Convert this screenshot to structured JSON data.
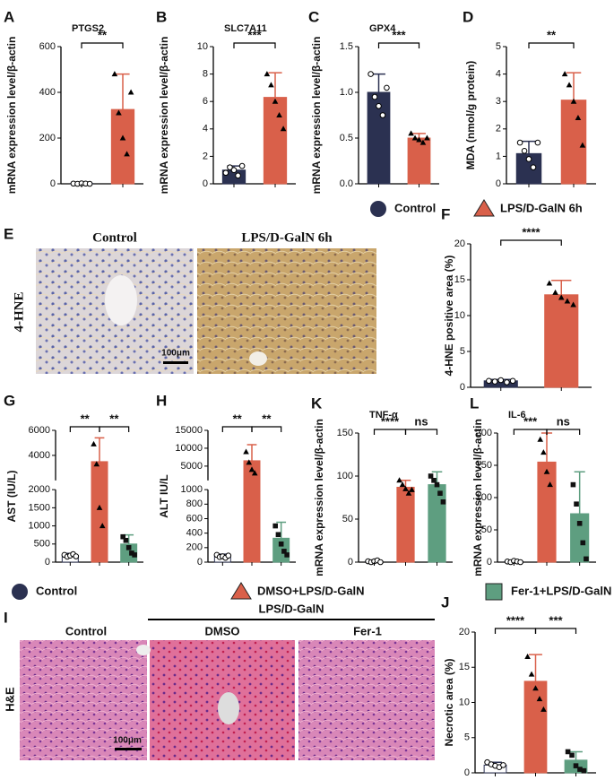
{
  "chart_data": [
    {
      "type": "bar",
      "panel": "A",
      "title": "PTGS2",
      "ylabel": "mRNA expression level/β-actin",
      "categories": [
        null,
        null
      ],
      "values": [
        1,
        325
      ],
      "errors": [
        1,
        155
      ],
      "points": [
        [
          1,
          0,
          2,
          1,
          0
        ],
        [
          480,
          310,
          200,
          130,
          400
        ]
      ],
      "colors": [
        "#ffffff",
        "#d9604a"
      ],
      "ylim": [
        0,
        600
      ],
      "yticks": [
        0,
        200,
        400,
        600
      ],
      "significance": [
        "**"
      ]
    },
    {
      "type": "bar",
      "panel": "B",
      "title": "SLC7A11",
      "ylabel": "mRNA expression level/β-actin",
      "categories": [
        null,
        null
      ],
      "values": [
        1.0,
        6.3
      ],
      "errors": [
        0.3,
        1.8
      ],
      "points": [
        [
          0.8,
          1.2,
          1.0,
          0.6,
          1.3
        ],
        [
          8.0,
          7.2,
          6.0,
          5.0,
          4.0
        ]
      ],
      "colors": [
        "#2b3151",
        "#d9604a"
      ],
      "ylim": [
        0,
        10
      ],
      "yticks": [
        0,
        2,
        4,
        6,
        8,
        10
      ],
      "significance": [
        "***"
      ]
    },
    {
      "type": "bar",
      "panel": "C",
      "title": "GPX4",
      "ylabel": "mRNA expression level/β-actin",
      "categories": [
        null,
        null
      ],
      "values": [
        1.0,
        0.5
      ],
      "errors": [
        0.2,
        0.05
      ],
      "points": [
        [
          1.2,
          0.95,
          0.85,
          0.75,
          1.05
        ],
        [
          0.55,
          0.5,
          0.48,
          0.45,
          0.5
        ]
      ],
      "colors": [
        "#2b3151",
        "#d9604a"
      ],
      "ylim": [
        0,
        1.5
      ],
      "yticks": [
        {
          "value": 0,
          "label": "0.0"
        },
        0.5,
        {
          "value": 1,
          "label": "1.0"
        },
        1.5
      ],
      "significance": [
        "***"
      ]
    },
    {
      "type": "bar",
      "panel": "D",
      "ylabel": "MDA (nmol/g protein)",
      "categories": [
        null,
        null
      ],
      "values": [
        1.1,
        3.05
      ],
      "errors": [
        0.45,
        1.0
      ],
      "points": [
        [
          1.5,
          1.2,
          0.9,
          0.6,
          1.5
        ],
        [
          4.0,
          3.6,
          3.0,
          2.4,
          1.4
        ]
      ],
      "colors": [
        "#2b3151",
        "#d9604a"
      ],
      "ylim": [
        0,
        5
      ],
      "yticks": [
        0,
        1,
        2,
        3,
        4,
        5
      ],
      "significance": [
        "**"
      ]
    },
    {
      "type": "bar",
      "panel": "F",
      "ylabel": "4-HNE positive area (%)",
      "categories": [
        null,
        null
      ],
      "values": [
        0.9,
        12.9
      ],
      "errors": [
        0.2,
        2.0
      ],
      "points": [
        [
          0.9,
          0.8,
          1.0,
          0.7,
          0.9
        ],
        [
          14.5,
          13.2,
          12.5,
          12.0,
          11.5
        ]
      ],
      "colors": [
        "#2b3151",
        "#d9604a"
      ],
      "ylim": [
        0,
        20
      ],
      "yticks": [
        0,
        5,
        10,
        15,
        20
      ],
      "significance": [
        "****"
      ]
    },
    {
      "type": "bar",
      "panel": "G",
      "ylabel": "AST (IU/L)",
      "categories": [
        null,
        null,
        null
      ],
      "values": [
        180,
        3500,
        500
      ],
      "errors": [
        60,
        1900,
        250
      ],
      "points": [
        [
          200,
          150,
          180,
          220,
          160
        ],
        [
          4900,
          3300,
          1500,
          1000
        ],
        [
          700,
          600,
          400,
          250,
          200
        ]
      ],
      "colors": [
        "#ffffff",
        "#d9604a",
        "#5e9e80"
      ],
      "ylim": [
        0,
        6000
      ],
      "ybreak": 2000,
      "yticks": [
        0,
        500,
        1000,
        1500,
        2000,
        4000,
        6000
      ],
      "significance": [
        "**",
        "**"
      ]
    },
    {
      "type": "bar",
      "panel": "H",
      "ylabel": "ALT IU/L",
      "categories": [
        null,
        null,
        null
      ],
      "values": [
        80,
        6500,
        330
      ],
      "errors": [
        30,
        4500,
        220
      ],
      "points": [
        [
          100,
          70,
          80,
          60,
          90
        ],
        [
          9000,
          6000,
          4000,
          3000
        ],
        [
          500,
          380,
          250,
          150,
          100
        ]
      ],
      "colors": [
        "#ffffff",
        "#d9604a",
        "#5e9e80"
      ],
      "ylim": [
        0,
        15000
      ],
      "ybreak": 1000,
      "yticks": [
        0,
        200,
        400,
        600,
        800,
        1000,
        5000,
        10000,
        15000
      ],
      "significance": [
        "**",
        "**"
      ]
    },
    {
      "type": "bar",
      "panel": "K",
      "title": "TNF-α",
      "ylabel": "mRNA expression level/β-actin",
      "categories": [
        null,
        null,
        null
      ],
      "values": [
        1,
        87,
        90
      ],
      "errors": [
        1,
        8,
        15
      ],
      "points": [
        [
          1,
          0,
          1,
          2,
          0
        ],
        [
          95,
          90,
          85,
          80,
          84
        ],
        [
          100,
          95,
          90,
          80,
          70
        ]
      ],
      "colors": [
        "#ffffff",
        "#d9604a",
        "#5e9e80"
      ],
      "ylim": [
        0,
        150
      ],
      "yticks": [
        0,
        50,
        100,
        150
      ],
      "significance": [
        "****",
        "ns"
      ]
    },
    {
      "type": "bar",
      "panel": "L",
      "title": "IL-6",
      "ylabel": "mRNA expression level/β-actin",
      "categories": [
        null,
        null,
        null
      ],
      "values": [
        1,
        155,
        75
      ],
      "errors": [
        1,
        45,
        65
      ],
      "points": [
        [
          1,
          0,
          2,
          1,
          0
        ],
        [
          190,
          170,
          140,
          120
        ],
        [
          120,
          90,
          60,
          30,
          5
        ]
      ],
      "colors": [
        "#ffffff",
        "#d9604a",
        "#5e9e80"
      ],
      "ylim": [
        0,
        200
      ],
      "yticks": [
        0,
        50,
        100,
        150,
        200
      ],
      "significance": [
        "***",
        "ns"
      ]
    },
    {
      "type": "bar",
      "panel": "J",
      "ylabel": "Necrotic area (%)",
      "categories": [
        null,
        null,
        null
      ],
      "values": [
        1.1,
        13.0,
        1.8
      ],
      "errors": [
        0.4,
        3.8,
        1.2
      ],
      "points": [
        [
          1.5,
          1.2,
          1.0,
          0.8,
          1.1
        ],
        [
          16.5,
          14.0,
          12.0,
          10.5,
          9.0
        ],
        [
          3.0,
          2.5,
          1.0,
          0.5,
          0.3
        ]
      ],
      "colors": [
        "#ffffff",
        "#d9604a",
        "#5e9e80"
      ],
      "ylim": [
        0,
        20
      ],
      "yticks": [
        0,
        5,
        10,
        15,
        20
      ],
      "significance": [
        "****",
        "***"
      ]
    }
  ],
  "legends": [
    {
      "entries": [
        {
          "name": "Control",
          "color": "#2b3151"
        },
        {
          "name": "LPS/D-GalN 6h",
          "color": "#d9604a"
        }
      ]
    },
    {
      "entries": [
        {
          "name": "Control",
          "color": "#2b3151"
        },
        {
          "name": "DMSO+LPS/D-GalN",
          "color": "#d9604a"
        },
        {
          "name": "Fer-1+LPS/D-GalN",
          "color": "#5e9e80"
        }
      ]
    }
  ],
  "images": {
    "E": {
      "panel": "E",
      "columns": [
        "Control",
        "LPS/D-GalN 6h"
      ],
      "stain": "4-HNE",
      "scale": "100μm"
    },
    "I": {
      "panel": "I",
      "group": "LPS/D-GalN",
      "columns": [
        "Control",
        "DMSO",
        "Fer-1"
      ],
      "stain": "H&E",
      "scale": "100μm"
    }
  }
}
